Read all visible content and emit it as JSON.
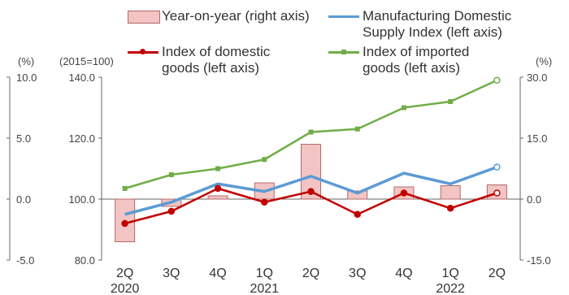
{
  "chart_data": {
    "type": "bar+line",
    "categories": [
      {
        "q": "2Q",
        "y": "2020"
      },
      {
        "q": "3Q",
        "y": ""
      },
      {
        "q": "4Q",
        "y": ""
      },
      {
        "q": "1Q",
        "y": "2021"
      },
      {
        "q": "2Q",
        "y": ""
      },
      {
        "q": "3Q",
        "y": ""
      },
      {
        "q": "4Q",
        "y": ""
      },
      {
        "q": "1Q",
        "y": "2022"
      },
      {
        "q": "2Q",
        "y": ""
      }
    ],
    "bar_series": {
      "name": "Year-on-year (right axis)",
      "axis": "right",
      "values": [
        -10.5,
        -1.8,
        0.8,
        4.0,
        13.5,
        2.0,
        3.0,
        3.3,
        3.5
      ]
    },
    "line_series": [
      {
        "name": "Manufacturing Domestic Supply Index (left axis)",
        "name_lines": [
          "Manufacturing Domestic",
          "Supply Index (left axis)"
        ],
        "axis": "left",
        "color": "#5b9bd5",
        "values": [
          95.0,
          99.0,
          105.0,
          102.5,
          107.5,
          102.0,
          108.5,
          105.0,
          110.5
        ]
      },
      {
        "name": "Index of domestic goods (left axis)",
        "name_lines": [
          "Index of domestic",
          "goods (left axis)"
        ],
        "axis": "left",
        "color": "#c00000",
        "values": [
          92.0,
          96.0,
          103.5,
          99.0,
          102.5,
          95.0,
          102.0,
          97.0,
          102.0
        ]
      },
      {
        "name": "Index of imported goods (left axis)",
        "name_lines": [
          "Index of imported",
          "goods (left axis)"
        ],
        "axis": "left",
        "color": "#70ad47",
        "values": [
          103.5,
          108.0,
          110.0,
          113.0,
          122.0,
          123.0,
          130.0,
          132.0,
          139.0
        ]
      }
    ],
    "left_axis": {
      "unit": "(2015=100)",
      "ticks": [
        "140.0",
        "120.0",
        "100.0",
        "80.0"
      ],
      "ylim": [
        80,
        140
      ]
    },
    "right_axis": {
      "unit": "(%)",
      "ticks": [
        "30.0",
        "15.0",
        "0.0",
        "-15.0"
      ],
      "ylim": [
        -15,
        30
      ]
    },
    "far_left_axis": {
      "unit": "(%)",
      "ticks": [
        "10.0",
        "5.0",
        "0.0",
        "-5.0"
      ],
      "ylim": [
        -5,
        10
      ]
    },
    "grid": false,
    "legend_placement": "top"
  }
}
